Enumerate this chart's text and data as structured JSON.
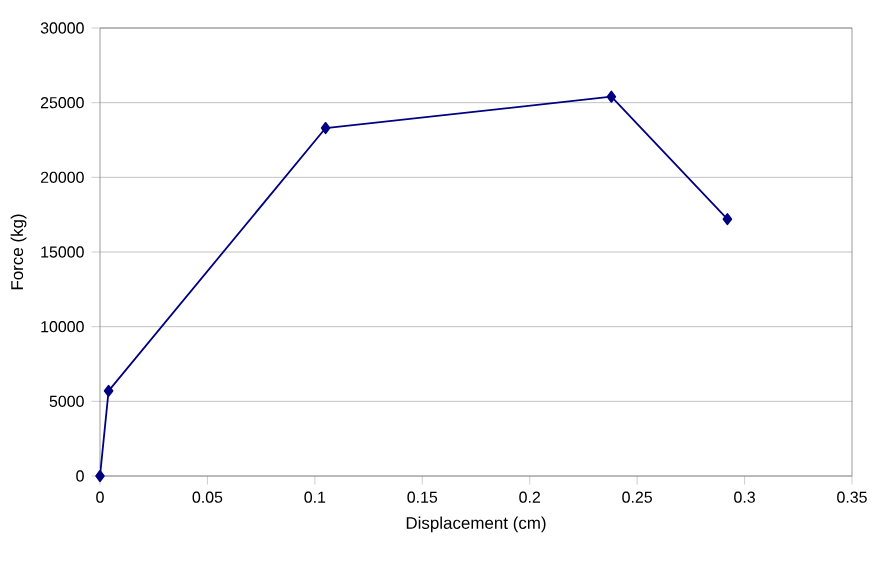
{
  "chart_data": {
    "type": "line",
    "xlabel": "Displacement (cm)",
    "ylabel": "Force (kg)",
    "x": [
      0,
      0.004,
      0.105,
      0.238,
      0.292
    ],
    "series": [
      {
        "color": "#000080",
        "values": [
          0,
          5700,
          23300,
          25400,
          17200
        ]
      }
    ],
    "xlim": [
      0,
      0.35
    ],
    "xticks": [
      0,
      0.05,
      0.1,
      0.15,
      0.2,
      0.25,
      0.3,
      0.35
    ],
    "ylim": [
      0,
      30000
    ],
    "yticks": [
      0,
      5000,
      10000,
      15000,
      20000,
      25000,
      30000
    ],
    "grid": "y",
    "marker": "diamond",
    "line_style": "solid"
  }
}
